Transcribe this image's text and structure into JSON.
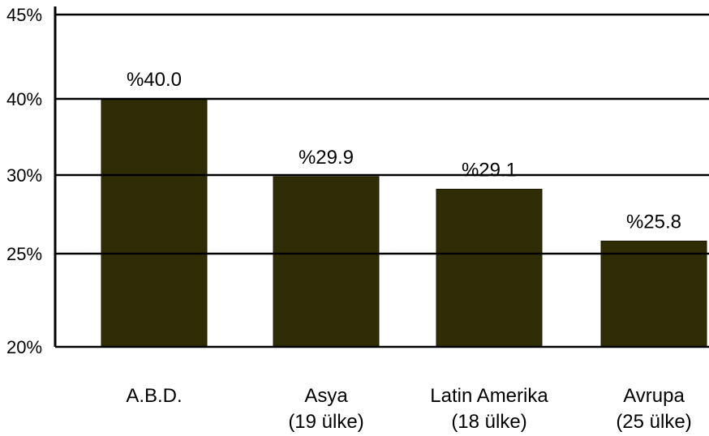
{
  "chart_data": {
    "type": "bar",
    "categories": [
      {
        "line1": "A.B.D.",
        "line2": ""
      },
      {
        "line1": "Asya",
        "line2": "(19 ülke)"
      },
      {
        "line1": "Latin Amerika",
        "line2": "(18 ülke)"
      },
      {
        "line1": "Avrupa",
        "line2": "(25 ülke)"
      }
    ],
    "values": [
      40.0,
      29.9,
      29.1,
      25.8
    ],
    "data_labels": [
      "%40.0",
      "%29.9",
      "%29.1",
      "%25.8"
    ],
    "y_ticks": [
      {
        "value": 20,
        "label": "20%"
      },
      {
        "value": 25,
        "label": "25%"
      },
      {
        "value": 30,
        "label": "30%"
      },
      {
        "value": 40,
        "label": "40%"
      },
      {
        "value": 45,
        "label": "45%"
      }
    ],
    "bar_color": "#2f2d06",
    "grid": true,
    "title": "",
    "xlabel": "",
    "ylabel": ""
  }
}
